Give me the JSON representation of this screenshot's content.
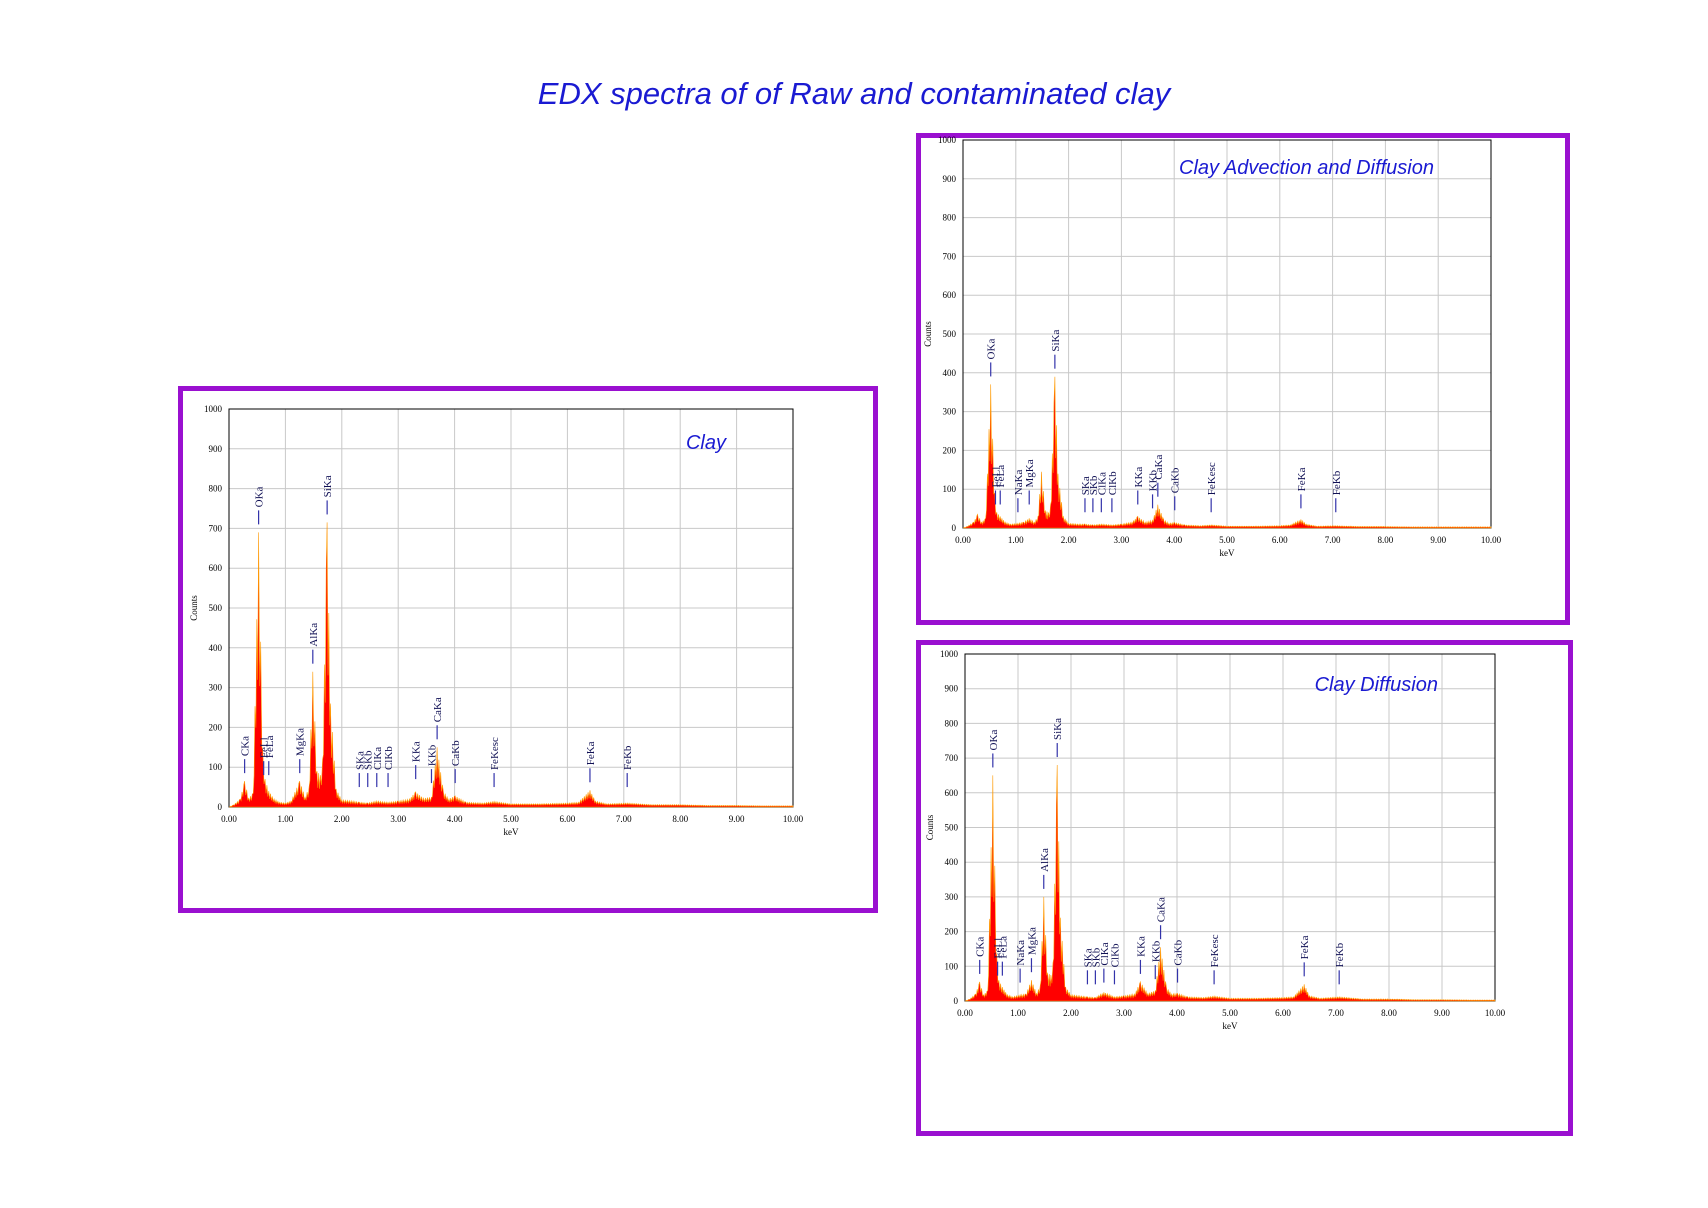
{
  "page": {
    "title": "EDX spectra of of  Raw and contaminated clay"
  },
  "colors": {
    "frame": "#9a10d0",
    "spectrum": "#ff0000",
    "spectrum_edge": "#ff9900",
    "title": "#1a1ad2",
    "peak_marker": "#3333aa",
    "grid": "#c8c8c8"
  },
  "chart_data": [
    {
      "id": "clay",
      "type": "area",
      "title": "Clay",
      "xlabel": "keV",
      "ylabel": "Counts",
      "xlim": [
        0,
        10
      ],
      "ylim": [
        0,
        1000
      ],
      "xticks": [
        "0.00",
        "1.00",
        "2.00",
        "3.00",
        "4.00",
        "5.00",
        "6.00",
        "7.00",
        "8.00",
        "9.00",
        "10.00"
      ],
      "yticks": [
        "0",
        "100",
        "200",
        "300",
        "400",
        "500",
        "600",
        "700",
        "800",
        "900",
        "1000"
      ],
      "grid": true,
      "series": [
        {
          "values": [
            [
              0.0,
              0
            ],
            [
              0.08,
              5
            ],
            [
              0.2,
              20
            ],
            [
              0.277,
              65
            ],
            [
              0.35,
              22
            ],
            [
              0.43,
              35
            ],
            [
              0.525,
              690
            ],
            [
              0.6,
              140
            ],
            [
              0.64,
              70
            ],
            [
              0.705,
              40
            ],
            [
              0.8,
              20
            ],
            [
              0.9,
              12
            ],
            [
              1.0,
              10
            ],
            [
              1.1,
              15
            ],
            [
              1.254,
              65
            ],
            [
              1.35,
              25
            ],
            [
              1.42,
              50
            ],
            [
              1.486,
              340
            ],
            [
              1.56,
              90
            ],
            [
              1.62,
              80
            ],
            [
              1.66,
              120
            ],
            [
              1.74,
              715
            ],
            [
              1.8,
              260
            ],
            [
              1.9,
              45
            ],
            [
              2.0,
              18
            ],
            [
              2.2,
              15
            ],
            [
              2.31,
              12
            ],
            [
              2.46,
              10
            ],
            [
              2.62,
              15
            ],
            [
              2.82,
              12
            ],
            [
              3.0,
              15
            ],
            [
              3.2,
              20
            ],
            [
              3.31,
              38
            ],
            [
              3.45,
              22
            ],
            [
              3.59,
              25
            ],
            [
              3.69,
              150
            ],
            [
              3.8,
              40
            ],
            [
              3.9,
              20
            ],
            [
              4.01,
              28
            ],
            [
              4.2,
              12
            ],
            [
              4.5,
              10
            ],
            [
              4.7,
              14
            ],
            [
              5.0,
              8
            ],
            [
              5.5,
              8
            ],
            [
              6.0,
              10
            ],
            [
              6.2,
              12
            ],
            [
              6.4,
              42
            ],
            [
              6.5,
              15
            ],
            [
              6.7,
              8
            ],
            [
              7.06,
              10
            ],
            [
              7.5,
              6
            ],
            [
              8.0,
              6
            ],
            [
              8.5,
              4
            ],
            [
              9.0,
              4
            ],
            [
              9.5,
              3
            ],
            [
              10.0,
              3
            ]
          ]
        }
      ],
      "peaks": [
        {
          "label": "CKa",
          "x": 0.277,
          "y": 65
        },
        {
          "label": "OKa",
          "x": 0.525,
          "y": 690
        },
        {
          "label": "FeLl",
          "x": 0.615,
          "y": 60
        },
        {
          "label": "FeLa",
          "x": 0.705,
          "y": 60
        },
        {
          "label": "MgKa",
          "x": 1.254,
          "y": 65
        },
        {
          "label": "AlKa",
          "x": 1.486,
          "y": 340
        },
        {
          "label": "SiKa",
          "x": 1.74,
          "y": 715
        },
        {
          "label": "SKa",
          "x": 2.31,
          "y": 30
        },
        {
          "label": "SKb",
          "x": 2.46,
          "y": 30
        },
        {
          "label": "ClKa",
          "x": 2.62,
          "y": 30
        },
        {
          "label": "ClKb",
          "x": 2.82,
          "y": 30
        },
        {
          "label": "KKa",
          "x": 3.31,
          "y": 50
        },
        {
          "label": "KKb",
          "x": 3.59,
          "y": 40
        },
        {
          "label": "CaKa",
          "x": 3.69,
          "y": 150
        },
        {
          "label": "CaKb",
          "x": 4.01,
          "y": 40
        },
        {
          "label": "FeKesc",
          "x": 4.7,
          "y": 30
        },
        {
          "label": "FeKa",
          "x": 6.4,
          "y": 42
        },
        {
          "label": "FeKb",
          "x": 7.06,
          "y": 30
        }
      ]
    },
    {
      "id": "advection-diffusion",
      "type": "area",
      "title": "Clay Advection and Diffusion",
      "xlabel": "keV",
      "ylabel": "Counts",
      "xlim": [
        0,
        10
      ],
      "ylim": [
        0,
        1000
      ],
      "xticks": [
        "0.00",
        "1.00",
        "2.00",
        "3.00",
        "4.00",
        "5.00",
        "6.00",
        "7.00",
        "8.00",
        "9.00",
        "10.00"
      ],
      "yticks": [
        "0",
        "100",
        "200",
        "300",
        "400",
        "500",
        "600",
        "700",
        "800",
        "900",
        "1000"
      ],
      "grid": true,
      "series": [
        {
          "values": [
            [
              0.0,
              0
            ],
            [
              0.08,
              4
            ],
            [
              0.2,
              15
            ],
            [
              0.277,
              35
            ],
            [
              0.35,
              15
            ],
            [
              0.43,
              25
            ],
            [
              0.525,
              370
            ],
            [
              0.6,
              90
            ],
            [
              0.64,
              40
            ],
            [
              0.705,
              30
            ],
            [
              0.8,
              15
            ],
            [
              0.9,
              10
            ],
            [
              1.04,
              12
            ],
            [
              1.15,
              15
            ],
            [
              1.254,
              25
            ],
            [
              1.35,
              15
            ],
            [
              1.42,
              30
            ],
            [
              1.486,
              145
            ],
            [
              1.56,
              45
            ],
            [
              1.62,
              40
            ],
            [
              1.66,
              60
            ],
            [
              1.74,
              390
            ],
            [
              1.8,
              140
            ],
            [
              1.9,
              30
            ],
            [
              2.0,
              12
            ],
            [
              2.2,
              10
            ],
            [
              2.31,
              10
            ],
            [
              2.46,
              8
            ],
            [
              2.62,
              10
            ],
            [
              2.82,
              8
            ],
            [
              3.0,
              10
            ],
            [
              3.2,
              15
            ],
            [
              3.31,
              30
            ],
            [
              3.45,
              15
            ],
            [
              3.59,
              20
            ],
            [
              3.69,
              60
            ],
            [
              3.8,
              22
            ],
            [
              3.9,
              12
            ],
            [
              4.01,
              14
            ],
            [
              4.2,
              8
            ],
            [
              4.5,
              6
            ],
            [
              4.7,
              8
            ],
            [
              5.0,
              5
            ],
            [
              5.5,
              5
            ],
            [
              6.0,
              6
            ],
            [
              6.2,
              8
            ],
            [
              6.4,
              22
            ],
            [
              6.5,
              10
            ],
            [
              6.7,
              5
            ],
            [
              7.06,
              6
            ],
            [
              7.5,
              4
            ],
            [
              8.0,
              4
            ],
            [
              8.5,
              3
            ],
            [
              9.0,
              3
            ],
            [
              9.5,
              3
            ],
            [
              10.0,
              3
            ]
          ]
        }
      ],
      "peaks": [
        {
          "label": "OKa",
          "x": 0.525,
          "y": 370
        },
        {
          "label": "FeLl",
          "x": 0.615,
          "y": 40
        },
        {
          "label": "FeLa",
          "x": 0.705,
          "y": 40
        },
        {
          "label": "NaKa",
          "x": 1.04,
          "y": 20
        },
        {
          "label": "MgKa",
          "x": 1.254,
          "y": 40
        },
        {
          "label": "SiKa",
          "x": 1.74,
          "y": 390
        },
        {
          "label": "SKa",
          "x": 2.31,
          "y": 20
        },
        {
          "label": "SKb",
          "x": 2.46,
          "y": 20
        },
        {
          "label": "ClKa",
          "x": 2.62,
          "y": 20
        },
        {
          "label": "ClKb",
          "x": 2.82,
          "y": 20
        },
        {
          "label": "KKa",
          "x": 3.31,
          "y": 40
        },
        {
          "label": "KKb",
          "x": 3.59,
          "y": 30
        },
        {
          "label": "CaKa",
          "x": 3.69,
          "y": 60
        },
        {
          "label": "CaKb",
          "x": 4.01,
          "y": 25
        },
        {
          "label": "FeKesc",
          "x": 4.7,
          "y": 20
        },
        {
          "label": "FeKa",
          "x": 6.4,
          "y": 30
        },
        {
          "label": "FeKb",
          "x": 7.06,
          "y": 20
        }
      ]
    },
    {
      "id": "diffusion",
      "type": "area",
      "title": "Clay Diffusion",
      "xlabel": "keV",
      "ylabel": "Counts",
      "xlim": [
        0,
        10
      ],
      "ylim": [
        0,
        1000
      ],
      "xticks": [
        "0.00",
        "1.00",
        "2.00",
        "3.00",
        "4.00",
        "5.00",
        "6.00",
        "7.00",
        "8.00",
        "9.00",
        "10.00"
      ],
      "yticks": [
        "0",
        "100",
        "200",
        "300",
        "400",
        "500",
        "600",
        "700",
        "800",
        "900",
        "1000"
      ],
      "grid": true,
      "series": [
        {
          "values": [
            [
              0.0,
              0
            ],
            [
              0.08,
              5
            ],
            [
              0.2,
              20
            ],
            [
              0.277,
              55
            ],
            [
              0.35,
              18
            ],
            [
              0.43,
              30
            ],
            [
              0.525,
              650
            ],
            [
              0.6,
              130
            ],
            [
              0.64,
              60
            ],
            [
              0.705,
              40
            ],
            [
              0.8,
              18
            ],
            [
              0.9,
              12
            ],
            [
              1.04,
              18
            ],
            [
              1.15,
              20
            ],
            [
              1.254,
              60
            ],
            [
              1.35,
              22
            ],
            [
              1.42,
              45
            ],
            [
              1.486,
              300
            ],
            [
              1.56,
              80
            ],
            [
              1.62,
              75
            ],
            [
              1.66,
              110
            ],
            [
              1.74,
              680
            ],
            [
              1.8,
              240
            ],
            [
              1.9,
              40
            ],
            [
              2.0,
              18
            ],
            [
              2.2,
              14
            ],
            [
              2.31,
              12
            ],
            [
              2.46,
              10
            ],
            [
              2.62,
              25
            ],
            [
              2.82,
              12
            ],
            [
              3.0,
              15
            ],
            [
              3.2,
              20
            ],
            [
              3.31,
              55
            ],
            [
              3.45,
              22
            ],
            [
              3.59,
              30
            ],
            [
              3.69,
              155
            ],
            [
              3.8,
              40
            ],
            [
              3.9,
              20
            ],
            [
              4.01,
              22
            ],
            [
              4.2,
              12
            ],
            [
              4.5,
              10
            ],
            [
              4.7,
              14
            ],
            [
              5.0,
              8
            ],
            [
              5.5,
              8
            ],
            [
              6.0,
              10
            ],
            [
              6.2,
              12
            ],
            [
              6.4,
              48
            ],
            [
              6.5,
              15
            ],
            [
              6.7,
              8
            ],
            [
              7.06,
              12
            ],
            [
              7.5,
              6
            ],
            [
              8.0,
              6
            ],
            [
              8.5,
              4
            ],
            [
              9.0,
              4
            ],
            [
              9.5,
              3
            ],
            [
              10.0,
              3
            ]
          ]
        }
      ],
      "peaks": [
        {
          "label": "CKa",
          "x": 0.277,
          "y": 55
        },
        {
          "label": "OKa",
          "x": 0.525,
          "y": 650
        },
        {
          "label": "FeLl",
          "x": 0.615,
          "y": 50
        },
        {
          "label": "FeLa",
          "x": 0.705,
          "y": 50
        },
        {
          "label": "NaKa",
          "x": 1.04,
          "y": 30
        },
        {
          "label": "MgKa",
          "x": 1.254,
          "y": 60
        },
        {
          "label": "AlKa",
          "x": 1.486,
          "y": 300
        },
        {
          "label": "SiKa",
          "x": 1.74,
          "y": 680
        },
        {
          "label": "SKa",
          "x": 2.31,
          "y": 25
        },
        {
          "label": "SKb",
          "x": 2.46,
          "y": 25
        },
        {
          "label": "ClKa",
          "x": 2.62,
          "y": 30
        },
        {
          "label": "ClKb",
          "x": 2.82,
          "y": 25
        },
        {
          "label": "KKa",
          "x": 3.31,
          "y": 55
        },
        {
          "label": "KKb",
          "x": 3.59,
          "y": 40
        },
        {
          "label": "CaKa",
          "x": 3.69,
          "y": 155
        },
        {
          "label": "CaKb",
          "x": 4.01,
          "y": 30
        },
        {
          "label": "FeKesc",
          "x": 4.7,
          "y": 25
        },
        {
          "label": "FeKa",
          "x": 6.4,
          "y": 48
        },
        {
          "label": "FeKb",
          "x": 7.06,
          "y": 25
        }
      ]
    }
  ]
}
